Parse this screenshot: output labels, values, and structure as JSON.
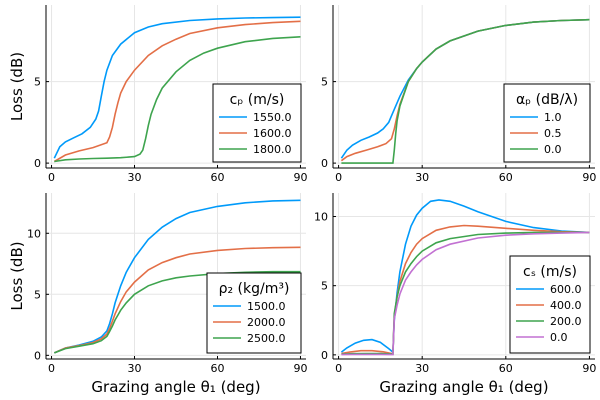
{
  "colors": [
    "#009AFA",
    "#E36F47",
    "#3EA44E",
    "#C271D2"
  ],
  "chart_data": [
    {
      "type": "line",
      "xlabel": "",
      "ylabel": "Loss (dB)",
      "xlim": [
        -2,
        92
      ],
      "ylim": [
        -0.3,
        9.7
      ],
      "xticks": [
        0,
        30,
        60,
        90
      ],
      "xticklabels": [
        "0",
        "30",
        "60",
        "90"
      ],
      "yticks": [
        0,
        5
      ],
      "yticklabels": [
        "0",
        "5"
      ],
      "legend": {
        "title": "cₚ (m/s)",
        "position": "bottom-right"
      },
      "grid": true,
      "series": [
        {
          "name": "1550.0",
          "x": [
            1,
            3,
            5,
            8,
            11,
            14,
            16,
            17,
            18,
            19,
            20,
            22,
            25,
            30,
            35,
            40,
            50,
            60,
            70,
            80,
            90
          ],
          "y": [
            0.3,
            1.0,
            1.3,
            1.55,
            1.8,
            2.2,
            2.7,
            3.2,
            4.1,
            5.0,
            5.7,
            6.6,
            7.3,
            8.0,
            8.35,
            8.55,
            8.75,
            8.85,
            8.9,
            8.93,
            8.95
          ]
        },
        {
          "name": "1600.0",
          "x": [
            1,
            5,
            10,
            15,
            20,
            21,
            22,
            23,
            24,
            25,
            27,
            30,
            35,
            40,
            45,
            50,
            60,
            70,
            80,
            90
          ],
          "y": [
            0.1,
            0.5,
            0.75,
            0.95,
            1.25,
            1.6,
            2.2,
            3.0,
            3.7,
            4.3,
            5.0,
            5.7,
            6.6,
            7.2,
            7.6,
            7.95,
            8.3,
            8.5,
            8.62,
            8.7
          ]
        },
        {
          "name": "1800.0",
          "x": [
            1,
            5,
            10,
            15,
            20,
            25,
            30,
            32,
            33,
            34,
            35,
            36,
            38,
            40,
            45,
            50,
            55,
            60,
            70,
            80,
            90
          ],
          "y": [
            0.1,
            0.2,
            0.25,
            0.28,
            0.3,
            0.33,
            0.4,
            0.55,
            0.8,
            1.5,
            2.3,
            3.0,
            3.9,
            4.6,
            5.6,
            6.3,
            6.75,
            7.05,
            7.45,
            7.65,
            7.75
          ]
        }
      ]
    },
    {
      "type": "line",
      "xlabel": "",
      "ylabel": "",
      "xlim": [
        -2,
        92
      ],
      "ylim": [
        -0.3,
        9.7
      ],
      "xticks": [
        0,
        30,
        60,
        90
      ],
      "xticklabels": [
        "0",
        "30",
        "60",
        "90"
      ],
      "yticks": [
        0,
        5
      ],
      "yticklabels": [
        "0",
        "5"
      ],
      "legend": {
        "title": "αₚ (dB/λ)",
        "position": "bottom-right"
      },
      "grid": true,
      "series": [
        {
          "name": "1.0",
          "x": [
            1,
            3,
            5,
            8,
            11,
            14,
            16,
            18,
            19,
            20,
            22,
            25,
            28,
            30,
            35,
            40,
            50,
            60,
            70,
            80,
            90
          ],
          "y": [
            0.3,
            0.8,
            1.1,
            1.4,
            1.6,
            1.85,
            2.1,
            2.5,
            2.9,
            3.3,
            4.1,
            5.1,
            5.8,
            6.2,
            7.0,
            7.5,
            8.1,
            8.45,
            8.65,
            8.75,
            8.8
          ]
        },
        {
          "name": "0.5",
          "x": [
            1,
            3,
            6,
            10,
            14,
            17,
            19,
            20,
            21,
            22,
            25,
            28,
            30,
            35,
            40,
            50,
            60,
            70,
            80,
            90
          ],
          "y": [
            0.15,
            0.4,
            0.6,
            0.8,
            1.0,
            1.2,
            1.5,
            2.1,
            2.9,
            3.6,
            5.0,
            5.8,
            6.2,
            7.0,
            7.5,
            8.1,
            8.45,
            8.65,
            8.75,
            8.8
          ]
        },
        {
          "name": "0.0",
          "x": [
            1,
            10,
            19.5,
            20,
            20.5,
            21,
            22,
            25,
            28,
            30,
            35,
            40,
            50,
            60,
            70,
            80,
            90
          ],
          "y": [
            0,
            0,
            0,
            0.8,
            1.8,
            2.6,
            3.5,
            5.0,
            5.8,
            6.2,
            7.0,
            7.5,
            8.1,
            8.45,
            8.65,
            8.75,
            8.8
          ]
        }
      ]
    },
    {
      "type": "line",
      "xlabel": "Grazing angle θ₁ (deg)",
      "ylabel": "Loss (dB)",
      "xlim": [
        -2,
        92
      ],
      "ylim": [
        -0.3,
        13.3
      ],
      "xticks": [
        0,
        30,
        60,
        90
      ],
      "xticklabels": [
        "0",
        "30",
        "60",
        "90"
      ],
      "yticks": [
        0,
        5,
        10
      ],
      "yticklabels": [
        "0",
        "5",
        "10"
      ],
      "legend": {
        "title": "ρ₂ (kg/m³)",
        "position": "bottom-right"
      },
      "grid": true,
      "series": [
        {
          "name": "1500.0",
          "x": [
            1,
            5,
            10,
            15,
            18,
            20,
            21,
            22,
            23,
            24,
            25,
            27,
            30,
            35,
            40,
            45,
            50,
            60,
            70,
            80,
            90
          ],
          "y": [
            0.2,
            0.6,
            0.85,
            1.15,
            1.5,
            2.0,
            2.6,
            3.4,
            4.3,
            5.0,
            5.7,
            6.8,
            8.0,
            9.5,
            10.5,
            11.2,
            11.7,
            12.2,
            12.5,
            12.65,
            12.7
          ]
        },
        {
          "name": "2000.0",
          "x": [
            1,
            5,
            10,
            15,
            18,
            20,
            21,
            22,
            23,
            24,
            25,
            27,
            30,
            35,
            40,
            45,
            50,
            60,
            70,
            80,
            90
          ],
          "y": [
            0.2,
            0.6,
            0.8,
            1.05,
            1.35,
            1.75,
            2.2,
            2.8,
            3.4,
            3.9,
            4.4,
            5.2,
            6.0,
            7.0,
            7.6,
            8.0,
            8.3,
            8.6,
            8.75,
            8.82,
            8.85
          ]
        },
        {
          "name": "2500.0",
          "x": [
            1,
            5,
            10,
            15,
            18,
            20,
            21,
            22,
            23,
            24,
            25,
            27,
            30,
            35,
            40,
            45,
            50,
            60,
            70,
            80,
            90
          ],
          "y": [
            0.2,
            0.55,
            0.75,
            0.95,
            1.2,
            1.55,
            1.95,
            2.4,
            2.9,
            3.3,
            3.7,
            4.3,
            5.0,
            5.7,
            6.1,
            6.35,
            6.5,
            6.7,
            6.8,
            6.85,
            6.85
          ]
        }
      ]
    },
    {
      "type": "line",
      "xlabel": "Grazing angle θ₁ (deg)",
      "ylabel": "",
      "xlim": [
        -2,
        92
      ],
      "ylim": [
        -0.3,
        11.7
      ],
      "xticks": [
        0,
        30,
        60,
        90
      ],
      "xticklabels": [
        "0",
        "30",
        "60",
        "90"
      ],
      "yticks": [
        0,
        5,
        10
      ],
      "yticklabels": [
        "0",
        "5",
        "10"
      ],
      "legend": {
        "title": "cₛ (m/s)",
        "position": "bottom-right"
      },
      "grid": true,
      "series": [
        {
          "name": "600.0",
          "x": [
            1,
            3,
            6,
            9,
            12,
            15,
            18,
            19.5,
            20,
            21,
            22,
            24,
            26,
            28,
            30,
            33,
            36,
            40,
            45,
            50,
            60,
            70,
            80,
            90
          ],
          "y": [
            0.2,
            0.5,
            0.85,
            1.05,
            1.1,
            0.9,
            0.45,
            0.2,
            2.5,
            4.5,
            6.0,
            8.0,
            9.3,
            10.1,
            10.6,
            11.1,
            11.2,
            11.1,
            10.75,
            10.35,
            9.65,
            9.2,
            8.95,
            8.85
          ]
        },
        {
          "name": "400.0",
          "x": [
            1,
            4,
            8,
            12,
            16,
            19,
            19.5,
            20,
            21,
            22,
            24,
            26,
            28,
            30,
            35,
            40,
            45,
            50,
            60,
            70,
            80,
            90
          ],
          "y": [
            0.1,
            0.2,
            0.3,
            0.3,
            0.22,
            0.1,
            0.1,
            2.8,
            4.2,
            5.3,
            6.6,
            7.4,
            8.0,
            8.4,
            9.0,
            9.25,
            9.35,
            9.3,
            9.15,
            9.0,
            8.9,
            8.85
          ]
        },
        {
          "name": "200.0",
          "x": [
            1,
            5,
            10,
            15,
            19,
            19.5,
            20,
            21,
            22,
            24,
            26,
            28,
            30,
            35,
            40,
            50,
            60,
            70,
            80,
            90
          ],
          "y": [
            0.05,
            0.08,
            0.1,
            0.1,
            0.06,
            0.05,
            3.0,
            4.2,
            5.0,
            6.0,
            6.6,
            7.1,
            7.5,
            8.1,
            8.4,
            8.7,
            8.8,
            8.85,
            8.85,
            8.85
          ]
        },
        {
          "name": "0.0",
          "x": [
            1,
            5,
            10,
            15,
            19,
            19.5,
            20,
            21,
            22,
            24,
            26,
            28,
            30,
            35,
            40,
            50,
            60,
            70,
            80,
            90
          ],
          "y": [
            0.02,
            0.03,
            0.03,
            0.03,
            0.02,
            0.02,
            2.6,
            3.6,
            4.4,
            5.4,
            6.0,
            6.5,
            6.9,
            7.6,
            8.0,
            8.45,
            8.65,
            8.75,
            8.8,
            8.85
          ]
        }
      ]
    }
  ]
}
